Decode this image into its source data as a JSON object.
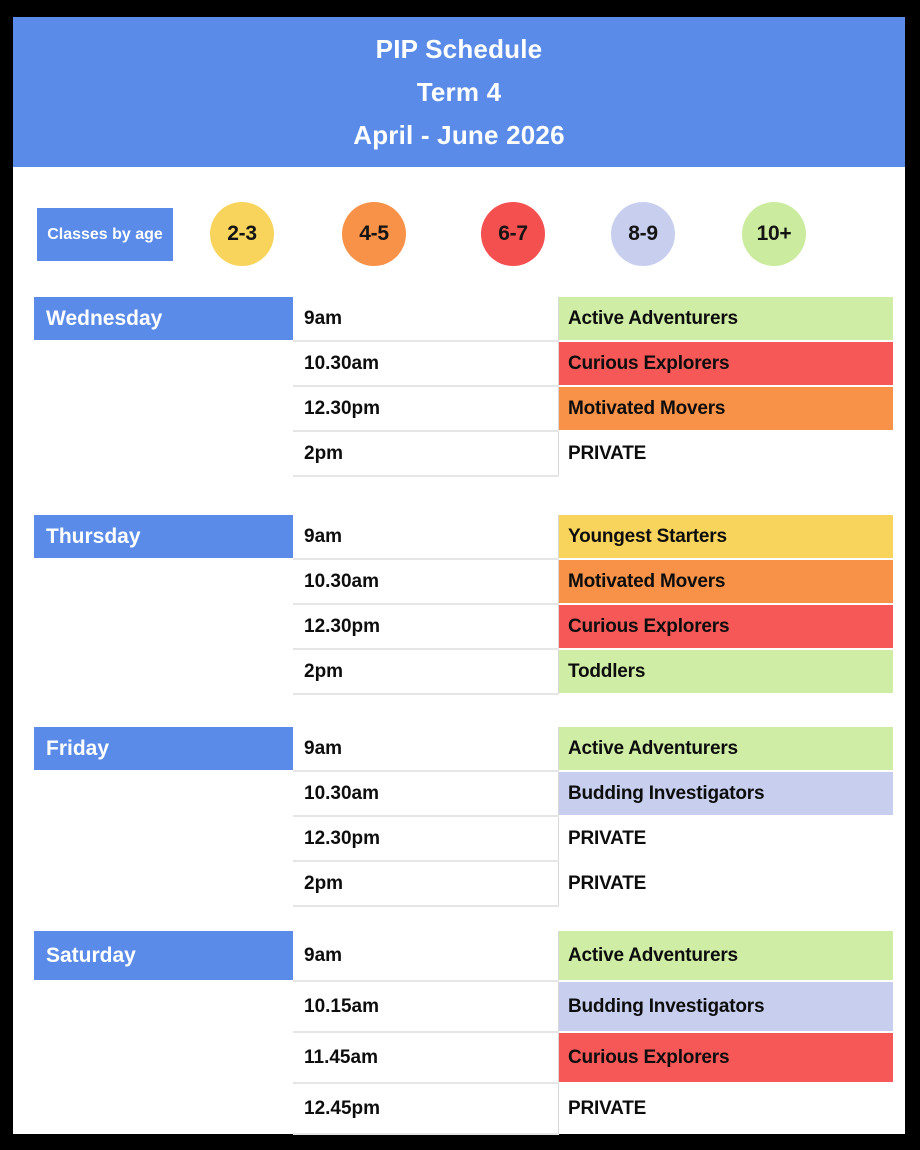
{
  "poster": {
    "title_lines": [
      "PIP Schedule",
      "Term 4",
      "April - June 2026"
    ]
  },
  "legend": {
    "label": "Classes by age",
    "ages": [
      {
        "label": "2-3",
        "color": "#F9D45C"
      },
      {
        "label": "4-5",
        "color": "#F79248"
      },
      {
        "label": "6-7",
        "color": "#F55050"
      },
      {
        "label": "8-9",
        "color": "#C8CFEE"
      },
      {
        "label": "10+",
        "color": "#CBEB9F"
      }
    ]
  },
  "colors": {
    "header_blue": "#5A8BE8",
    "frame_black": "#000000",
    "yellow_2_3": "#F9D45C",
    "orange_4_5": "#F79248",
    "red_6_7": "#F65757",
    "lavender_8_9": "#C8CFEE",
    "green_10_plus": "#CFEDA4",
    "private_white": "#FFFFFF"
  },
  "schedule": [
    {
      "day": "Wednesday",
      "rows": [
        {
          "time": "9am",
          "class_name": "Active Adventurers",
          "color": "#CFEDA4"
        },
        {
          "time": "10.30am",
          "class_name": "Curious Explorers",
          "color": "#F65757"
        },
        {
          "time": "12.30pm",
          "class_name": "Motivated Movers",
          "color": "#F79248"
        },
        {
          "time": "2pm",
          "class_name": "PRIVATE",
          "color": "#FFFFFF"
        }
      ]
    },
    {
      "day": "Thursday",
      "rows": [
        {
          "time": "9am",
          "class_name": "Youngest Starters",
          "color": "#F9D45C"
        },
        {
          "time": "10.30am",
          "class_name": "Motivated Movers",
          "color": "#F79248"
        },
        {
          "time": "12.30pm",
          "class_name": "Curious Explorers",
          "color": "#F65757"
        },
        {
          "time": "2pm",
          "class_name": "Toddlers",
          "color": "#CFEDA4"
        }
      ]
    },
    {
      "day": "Friday",
      "rows": [
        {
          "time": "9am",
          "class_name": "Active Adventurers",
          "color": "#CFEDA4"
        },
        {
          "time": "10.30am",
          "class_name": "Budding Investigators",
          "color": "#C8CFEE"
        },
        {
          "time": "12.30pm",
          "class_name": "PRIVATE",
          "color": "#FFFFFF"
        },
        {
          "time": "2pm",
          "class_name": "PRIVATE",
          "color": "#FFFFFF"
        }
      ]
    },
    {
      "day": "Saturday",
      "rows": [
        {
          "time": "9am",
          "class_name": "Active Adventurers",
          "color": "#CFEDA4"
        },
        {
          "time": "10.15am",
          "class_name": "Budding Investigators",
          "color": "#C8CFEE"
        },
        {
          "time": "11.45am",
          "class_name": "Curious Explorers",
          "color": "#F65757"
        },
        {
          "time": "12.45pm",
          "class_name": "PRIVATE",
          "color": "#FFFFFF"
        }
      ]
    }
  ]
}
